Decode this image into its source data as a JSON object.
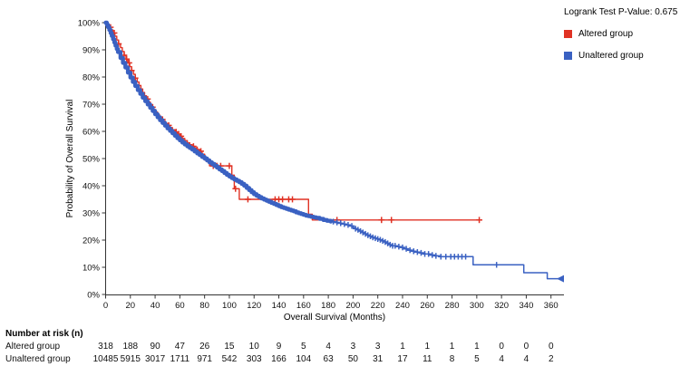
{
  "legend": {
    "pvalue_label": "Logrank Test P-Value: 0.675",
    "items": [
      {
        "label": "Altered group",
        "color": "#e03224"
      },
      {
        "label": "Unaltered group",
        "color": "#3a61c2"
      }
    ]
  },
  "chart_data": {
    "type": "line",
    "subtype": "kaplan-meier-step",
    "title": "",
    "xlabel": "Overall Survival (Months)",
    "ylabel": "Probability of Overall Survival",
    "xlim": [
      0,
      370
    ],
    "ylim": [
      0,
      100
    ],
    "x_ticks": [
      0,
      20,
      40,
      60,
      80,
      100,
      120,
      140,
      160,
      180,
      200,
      220,
      240,
      260,
      280,
      300,
      320,
      340,
      360
    ],
    "y_ticks": [
      0,
      10,
      20,
      30,
      40,
      50,
      60,
      70,
      80,
      90,
      100
    ],
    "y_tick_suffix": "%",
    "grid": false,
    "legend_position": "top-right",
    "series": [
      {
        "name": "Altered group",
        "color": "#e03224",
        "points": [
          [
            0,
            100
          ],
          [
            1.5,
            99.2
          ],
          [
            3,
            98.3
          ],
          [
            4.5,
            97.3
          ],
          [
            6,
            96.2
          ],
          [
            7.5,
            95
          ],
          [
            9,
            93.6
          ],
          [
            10.5,
            92.2
          ],
          [
            12,
            90.8
          ],
          [
            13.5,
            89.4
          ],
          [
            15,
            88
          ],
          [
            16.5,
            86.6
          ],
          [
            18,
            85.2
          ],
          [
            19.5,
            83.8
          ],
          [
            21,
            82.4
          ],
          [
            22.5,
            81
          ],
          [
            24,
            79.6
          ],
          [
            25.5,
            78.2
          ],
          [
            27,
            76.9
          ],
          [
            28.5,
            75.6
          ],
          [
            30,
            74.3
          ],
          [
            31.5,
            73.1
          ],
          [
            33,
            71.9
          ],
          [
            34.5,
            70.8
          ],
          [
            36,
            69.8
          ],
          [
            37.5,
            68.9
          ],
          [
            39,
            68
          ],
          [
            40.5,
            67.1
          ],
          [
            42,
            66.2
          ],
          [
            43.5,
            65.3
          ],
          [
            45,
            64.4
          ],
          [
            46.5,
            63.6
          ],
          [
            48,
            62.9
          ],
          [
            50,
            62.2
          ],
          [
            52,
            61.4
          ],
          [
            54,
            60.6
          ],
          [
            56,
            59.8
          ],
          [
            58,
            59
          ],
          [
            60,
            58.2
          ],
          [
            62,
            57.4
          ],
          [
            64,
            56.6
          ],
          [
            66,
            55.8
          ],
          [
            68,
            55.1
          ],
          [
            70,
            54.5
          ],
          [
            72,
            53.9
          ],
          [
            74,
            53.3
          ],
          [
            76,
            52.7
          ],
          [
            78,
            51.6
          ],
          [
            80,
            50.4
          ],
          [
            82,
            48.8
          ],
          [
            84,
            47.3
          ],
          [
            102,
            47.3
          ],
          [
            102,
            43.9
          ],
          [
            104,
            43.9
          ],
          [
            104,
            38.9
          ],
          [
            108,
            38.9
          ],
          [
            108,
            35
          ],
          [
            164,
            35
          ],
          [
            164,
            29.5
          ],
          [
            167,
            29.5
          ],
          [
            167,
            27.4
          ],
          [
            302,
            27.4
          ]
        ],
        "censors": [
          4,
          7,
          10.5,
          15,
          17,
          19,
          21,
          24,
          34,
          36,
          38,
          46,
          48,
          51,
          57,
          59,
          61,
          71,
          74,
          77,
          80,
          87,
          90,
          93,
          100,
          105,
          115,
          137,
          140,
          143,
          148,
          151,
          187,
          223,
          231,
          302
        ],
        "end_censor": null
      },
      {
        "name": "Unaltered group",
        "color": "#3a61c2",
        "points": [
          [
            0,
            100
          ],
          [
            1,
            99.2
          ],
          [
            2,
            98.3
          ],
          [
            3,
            97.3
          ],
          [
            4,
            96.2
          ],
          [
            5,
            95.1
          ],
          [
            6,
            93.9
          ],
          [
            7,
            92.7
          ],
          [
            8,
            91.5
          ],
          [
            9,
            90.3
          ],
          [
            10,
            89.2
          ],
          [
            12,
            87
          ],
          [
            14,
            85.2
          ],
          [
            16,
            83.5
          ],
          [
            18,
            81.6
          ],
          [
            20,
            79.8
          ],
          [
            22,
            78.2
          ],
          [
            24,
            76.7
          ],
          [
            26,
            75.2
          ],
          [
            28,
            73.8
          ],
          [
            30,
            72.4
          ],
          [
            32,
            71.1
          ],
          [
            34,
            69.9
          ],
          [
            36,
            68.7
          ],
          [
            38,
            67.5
          ],
          [
            40,
            66.3
          ],
          [
            42,
            65.2
          ],
          [
            44,
            64.1
          ],
          [
            46,
            63.1
          ],
          [
            48,
            62.1
          ],
          [
            50,
            61.1
          ],
          [
            52,
            60.2
          ],
          [
            54,
            59.3
          ],
          [
            56,
            58.4
          ],
          [
            58,
            57.5
          ],
          [
            60,
            56.7
          ],
          [
            62,
            55.9
          ],
          [
            64,
            55.2
          ],
          [
            66,
            54.5
          ],
          [
            68,
            53.9
          ],
          [
            70,
            53.3
          ],
          [
            72,
            52.6
          ],
          [
            74,
            51.9
          ],
          [
            76,
            51.3
          ],
          [
            78,
            50.6
          ],
          [
            80,
            50
          ],
          [
            82,
            49.3
          ],
          [
            84,
            48.6
          ],
          [
            86,
            48
          ],
          [
            88,
            47.3
          ],
          [
            90,
            46.7
          ],
          [
            92,
            46
          ],
          [
            94,
            45.4
          ],
          [
            96,
            44.7
          ],
          [
            98,
            44
          ],
          [
            100,
            43.4
          ],
          [
            102,
            42.8
          ],
          [
            104,
            42.3
          ],
          [
            106,
            41.8
          ],
          [
            108,
            41.3
          ],
          [
            110,
            40.7
          ],
          [
            112,
            40
          ],
          [
            114,
            39.2
          ],
          [
            116,
            38.4
          ],
          [
            118,
            37.6
          ],
          [
            120,
            36.9
          ],
          [
            122,
            36.3
          ],
          [
            124,
            35.8
          ],
          [
            126,
            35.3
          ],
          [
            128,
            34.9
          ],
          [
            130,
            34.5
          ],
          [
            132,
            34.1
          ],
          [
            134,
            33.7
          ],
          [
            136,
            33.3
          ],
          [
            138,
            32.9
          ],
          [
            140,
            32.5
          ],
          [
            142,
            32.1
          ],
          [
            144,
            31.8
          ],
          [
            146,
            31.5
          ],
          [
            148,
            31.2
          ],
          [
            150,
            30.9
          ],
          [
            152,
            30.6
          ],
          [
            154,
            30.2
          ],
          [
            156,
            29.9
          ],
          [
            158,
            29.6
          ],
          [
            160,
            29.3
          ],
          [
            162,
            29
          ],
          [
            164,
            28.8
          ],
          [
            166,
            28.6
          ],
          [
            168,
            28.4
          ],
          [
            170,
            28.2
          ],
          [
            173,
            27.8
          ],
          [
            176,
            27.4
          ],
          [
            179,
            27.1
          ],
          [
            182,
            26.8
          ]
        ],
        "thick_until": 182,
        "points_thin": [
          [
            182,
            26.8
          ],
          [
            185,
            26.5
          ],
          [
            188,
            26.2
          ],
          [
            191,
            25.9
          ],
          [
            194,
            25.6
          ],
          [
            197,
            25.2
          ],
          [
            200,
            24.6
          ],
          [
            202,
            24.2
          ],
          [
            204,
            23.8
          ],
          [
            206,
            23.3
          ],
          [
            208,
            22.8
          ],
          [
            210,
            22.3
          ],
          [
            212,
            21.8
          ],
          [
            214,
            21.4
          ],
          [
            216,
            21
          ],
          [
            218,
            20.7
          ],
          [
            220,
            20.4
          ],
          [
            222,
            20.1
          ],
          [
            224,
            19.7
          ],
          [
            226,
            19.3
          ],
          [
            228,
            18.8
          ],
          [
            230,
            18.3
          ],
          [
            232,
            17.9
          ],
          [
            235,
            17.6
          ],
          [
            238,
            17.3
          ],
          [
            241,
            16.8
          ],
          [
            244,
            16.3
          ],
          [
            247,
            15.9
          ],
          [
            250,
            15.6
          ],
          [
            254,
            15.3
          ],
          [
            258,
            14.9
          ],
          [
            262,
            14.5
          ],
          [
            266,
            14.2
          ],
          [
            270,
            13.9
          ],
          [
            297,
            13.9
          ],
          [
            297,
            10.9
          ],
          [
            338,
            10.9
          ],
          [
            338,
            8
          ],
          [
            357,
            8
          ],
          [
            357,
            5.8
          ],
          [
            369,
            5.8
          ]
        ],
        "censors": [
          184,
          187,
          190,
          193,
          196,
          199,
          202,
          204,
          206,
          208,
          210,
          212,
          214,
          216,
          218,
          220,
          222,
          224,
          226,
          228,
          230,
          232,
          234,
          237,
          240,
          243,
          246,
          249,
          252,
          255,
          258,
          261,
          264,
          267,
          271,
          275,
          279,
          282,
          285,
          288,
          291,
          316
        ],
        "end_censor": 369
      }
    ]
  },
  "risk_table": {
    "title": "Number at risk (n)",
    "columns": [
      0,
      20,
      40,
      60,
      80,
      100,
      120,
      140,
      160,
      180,
      200,
      220,
      240,
      260,
      280,
      300,
      320,
      340,
      360
    ],
    "rows": [
      {
        "label": "Altered group",
        "values": [
          "318",
          "188",
          "90",
          "47",
          "26",
          "15",
          "10",
          "9",
          "5",
          "4",
          "3",
          "3",
          "1",
          "1",
          "1",
          "1",
          "0",
          "0",
          "0"
        ]
      },
      {
        "label": "Unaltered group",
        "values": [
          "10485",
          "5915",
          "3017",
          "1711",
          "971",
          "542",
          "303",
          "166",
          "104",
          "63",
          "50",
          "31",
          "17",
          "11",
          "8",
          "5",
          "4",
          "4",
          "2"
        ]
      }
    ]
  }
}
